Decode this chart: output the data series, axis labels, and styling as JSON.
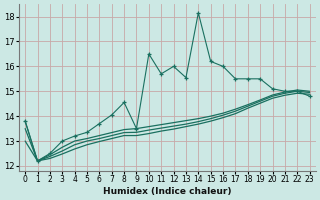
{
  "xlabel": "Humidex (Indice chaleur)",
  "ylabel": "",
  "bg_color": "#cce8e4",
  "grid_color": "#c8a8a8",
  "line_color": "#1a7060",
  "xlim": [
    -0.5,
    23.5
  ],
  "ylim": [
    11.8,
    18.5
  ],
  "xticks": [
    0,
    1,
    2,
    3,
    4,
    5,
    6,
    7,
    8,
    9,
    10,
    11,
    12,
    13,
    14,
    15,
    16,
    17,
    18,
    19,
    20,
    21,
    22,
    23
  ],
  "yticks": [
    12,
    13,
    14,
    15,
    16,
    17,
    18
  ],
  "jagged_x": [
    0,
    1,
    2,
    3,
    4,
    5,
    6,
    7,
    8,
    9,
    10,
    11,
    12,
    13,
    14,
    15,
    16,
    17,
    18,
    19,
    20,
    21,
    22,
    23
  ],
  "jagged_y": [
    13.8,
    12.2,
    12.5,
    13.0,
    13.2,
    13.35,
    13.7,
    14.05,
    14.55,
    13.5,
    16.5,
    15.7,
    16.0,
    15.55,
    18.15,
    16.2,
    16.0,
    15.5,
    15.5,
    15.5,
    15.1,
    15.0,
    15.0,
    14.8
  ],
  "smooth1_x": [
    0,
    1,
    2,
    3,
    4,
    5,
    6,
    7,
    8,
    9,
    10,
    11,
    12,
    13,
    14,
    15,
    16,
    17,
    18,
    19,
    20,
    21,
    22,
    23
  ],
  "smooth1_y": [
    13.8,
    12.2,
    12.45,
    12.75,
    13.0,
    13.1,
    13.22,
    13.34,
    13.46,
    13.5,
    13.58,
    13.66,
    13.74,
    13.82,
    13.9,
    14.0,
    14.12,
    14.28,
    14.46,
    14.65,
    14.85,
    14.97,
    15.05,
    15.0
  ],
  "smooth2_x": [
    0,
    1,
    2,
    3,
    4,
    5,
    6,
    7,
    8,
    9,
    10,
    11,
    12,
    13,
    14,
    15,
    16,
    17,
    18,
    19,
    20,
    21,
    22,
    23
  ],
  "smooth2_y": [
    13.5,
    12.2,
    12.38,
    12.6,
    12.85,
    13.0,
    13.1,
    13.22,
    13.34,
    13.35,
    13.44,
    13.52,
    13.6,
    13.68,
    13.78,
    13.9,
    14.04,
    14.2,
    14.4,
    14.6,
    14.8,
    14.92,
    15.0,
    14.95
  ],
  "smooth3_x": [
    0,
    1,
    2,
    3,
    4,
    5,
    6,
    7,
    8,
    9,
    10,
    11,
    12,
    13,
    14,
    15,
    16,
    17,
    18,
    19,
    20,
    21,
    22,
    23
  ],
  "smooth3_y": [
    13.0,
    12.2,
    12.3,
    12.48,
    12.68,
    12.85,
    12.98,
    13.1,
    13.22,
    13.22,
    13.3,
    13.4,
    13.48,
    13.58,
    13.68,
    13.8,
    13.94,
    14.1,
    14.32,
    14.52,
    14.72,
    14.84,
    14.92,
    14.88
  ]
}
